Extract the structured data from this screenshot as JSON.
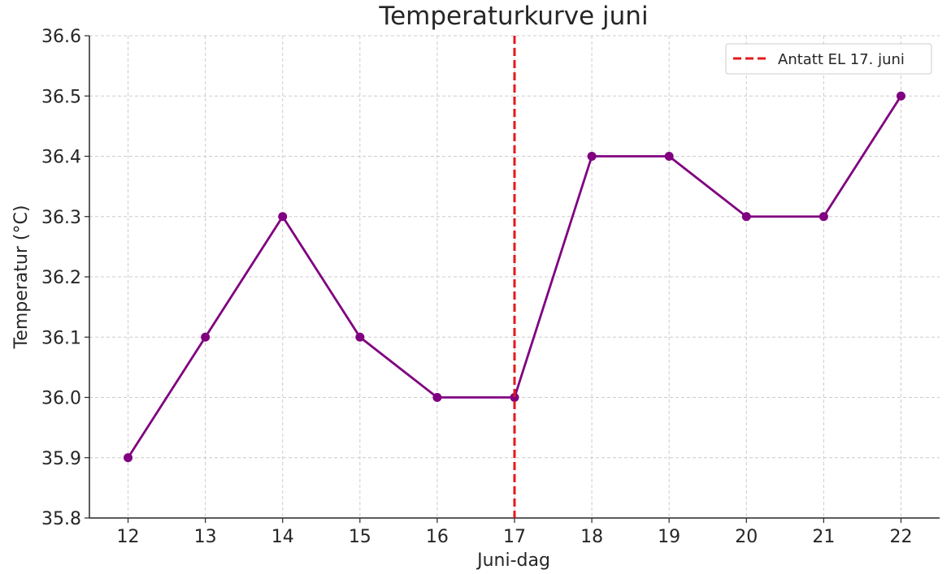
{
  "chart_data": {
    "type": "line",
    "title": "Temperaturkurve juni",
    "xlabel": "Juni-dag",
    "ylabel": "Temperatur (°C)",
    "x": [
      12,
      13,
      14,
      15,
      16,
      17,
      18,
      19,
      20,
      21,
      22
    ],
    "series": [
      {
        "values": [
          35.9,
          36.1,
          36.3,
          36.1,
          36.0,
          36.0,
          36.4,
          36.4,
          36.3,
          36.3,
          36.5
        ],
        "color": "#800080",
        "marker": "circle"
      }
    ],
    "xticks": [
      "12",
      "13",
      "14",
      "15",
      "16",
      "17",
      "18",
      "19",
      "20",
      "21",
      "22"
    ],
    "yticks": [
      "35.8",
      "35.9",
      "36.0",
      "36.1",
      "36.2",
      "36.3",
      "36.4",
      "36.5",
      "36.6"
    ],
    "ylim": [
      35.8,
      36.6
    ],
    "xlim": [
      11.5,
      22.5
    ],
    "grid": true,
    "annotations": [
      {
        "type": "vline",
        "x": 17,
        "label": "Antatt EL 17. juni",
        "color": "#e31a1c",
        "style": "dashed"
      }
    ],
    "legend_position": "top-right"
  }
}
